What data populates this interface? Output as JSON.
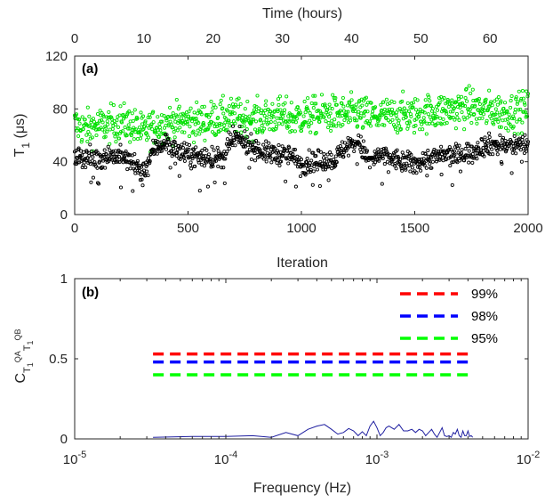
{
  "chart_data": [
    {
      "type": "scatter",
      "panel_label": "(a)",
      "xlabel": "Iteration",
      "ylabel_main": "T",
      "ylabel_sub": "1",
      "ylabel_unit": " (μs)",
      "top_xlabel": "Time (hours)",
      "xlim": [
        0,
        2000
      ],
      "ylim": [
        0,
        120
      ],
      "top_xlim": [
        0,
        65.5
      ],
      "x_ticks": [
        "0",
        "500",
        "1000",
        "1500",
        "2000"
      ],
      "y_ticks": [
        "0",
        "40",
        "80",
        "120"
      ],
      "top_x_ticks": [
        "0",
        "10",
        "20",
        "30",
        "40",
        "50",
        "60"
      ],
      "grid": false,
      "series": [
        {
          "marker": "open-circle",
          "color": "#00e000",
          "x": [
            0,
            50,
            100,
            150,
            200,
            250,
            300,
            350,
            400,
            450,
            500,
            550,
            600,
            650,
            700,
            750,
            800,
            850,
            900,
            950,
            1000,
            1050,
            1100,
            1150,
            1200,
            1250,
            1300,
            1350,
            1400,
            1450,
            1500,
            1550,
            1600,
            1650,
            1700,
            1750,
            1800,
            1850,
            1900,
            1950,
            2000
          ],
          "y": [
            68,
            65,
            67,
            68,
            70,
            68,
            62,
            66,
            69,
            70,
            71,
            70,
            72,
            73,
            74,
            73,
            72,
            74,
            75,
            73,
            74,
            75,
            76,
            76,
            75,
            77,
            74,
            74,
            75,
            76,
            75,
            77,
            78,
            79,
            80,
            82,
            78,
            79,
            77,
            78,
            80
          ]
        },
        {
          "marker": "open-circle",
          "color": "#000000",
          "x": [
            0,
            50,
            100,
            150,
            200,
            250,
            300,
            350,
            400,
            450,
            500,
            550,
            600,
            650,
            700,
            750,
            800,
            850,
            900,
            950,
            1000,
            1050,
            1100,
            1150,
            1200,
            1250,
            1300,
            1350,
            1400,
            1450,
            1500,
            1550,
            1600,
            1650,
            1700,
            1750,
            1800,
            1850,
            1900,
            1950,
            2000
          ],
          "y": [
            45,
            43,
            42,
            45,
            44,
            40,
            30,
            50,
            55,
            48,
            45,
            44,
            43,
            42,
            58,
            55,
            50,
            46,
            46,
            45,
            38,
            40,
            41,
            42,
            52,
            55,
            40,
            45,
            42,
            40,
            38,
            42,
            44,
            45,
            45,
            48,
            52,
            53,
            52,
            53,
            53
          ]
        }
      ]
    },
    {
      "type": "line",
      "panel_label": "(b)",
      "xlabel": "Frequency (Hz)",
      "ylabel_main": "C",
      "ylabel_sub": "T",
      "ylabel_subsub": "1",
      "ylabel_sup": "QA",
      "ylabel_sub2": "T",
      "ylabel_subsub2": "1",
      "ylabel_sup2": "QB",
      "xscale": "log",
      "xlim": [
        1e-05,
        0.01
      ],
      "ylim": [
        0,
        1
      ],
      "x_ticks": [
        {
          "base": "10",
          "exp": "-5"
        },
        {
          "base": "10",
          "exp": "-4"
        },
        {
          "base": "10",
          "exp": "-3"
        },
        {
          "base": "10",
          "exp": "-2"
        }
      ],
      "y_ticks": [
        "0",
        "0.5",
        "1"
      ],
      "grid": false,
      "series": [
        {
          "color": "#1f1fa0",
          "x": [
            3.3e-05,
            6e-05,
            0.0001,
            0.00015,
            0.0002,
            0.00025,
            0.0003,
            0.00035,
            0.0004,
            0.00045,
            0.0005,
            0.00055,
            0.0006,
            0.00065,
            0.0007,
            0.00075,
            0.0008,
            0.00085,
            0.0009,
            0.00095,
            0.001,
            0.00105,
            0.0011,
            0.00115,
            0.0012,
            0.0013,
            0.0014,
            0.0015,
            0.0016,
            0.0017,
            0.0018,
            0.0019,
            0.002,
            0.0021,
            0.0022,
            0.0023,
            0.0024,
            0.0025,
            0.0026,
            0.0027,
            0.0028,
            0.0029,
            0.003,
            0.0031,
            0.0032,
            0.0033,
            0.0034,
            0.0035,
            0.0036,
            0.0037,
            0.0038,
            0.0039,
            0.004,
            0.0041,
            0.0042,
            0.0043
          ],
          "y": [
            0.01,
            0.015,
            0.015,
            0.02,
            0.01,
            0.04,
            0.02,
            0.06,
            0.08,
            0.09,
            0.06,
            0.03,
            0.04,
            0.065,
            0.05,
            0.02,
            0.045,
            0.02,
            0.08,
            0.11,
            0.07,
            0.02,
            0.04,
            0.07,
            0.08,
            0.06,
            0.09,
            0.05,
            0.05,
            0.06,
            0.04,
            0.06,
            0.05,
            0.02,
            0.04,
            0.06,
            0.03,
            0.01,
            0.04,
            0.07,
            0.02,
            0.015,
            0.02,
            0.01,
            0.04,
            0.03,
            0.06,
            0.02,
            0.01,
            0.05,
            0.02,
            0.02,
            0.05,
            0.015,
            0.02,
            0.01
          ]
        }
      ],
      "thresholds": [
        {
          "label": "99%",
          "value": 0.53,
          "color": "#ff0000"
        },
        {
          "label": "98%",
          "value": 0.48,
          "color": "#0000ff"
        },
        {
          "label": "95%",
          "value": 0.4,
          "color": "#00ff00"
        }
      ],
      "threshold_xrange": [
        3.3e-05,
        0.0043
      ]
    }
  ]
}
